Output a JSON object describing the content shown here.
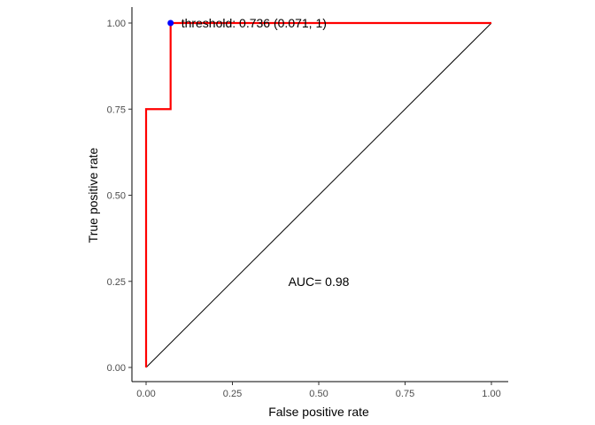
{
  "chart_data": {
    "type": "line",
    "xlabel": "False positive rate",
    "ylabel": "True positive rate",
    "xlim": [
      0,
      1
    ],
    "ylim": [
      0,
      1
    ],
    "x_ticks": [
      0,
      0.25,
      0.5,
      0.75,
      1
    ],
    "x_tick_labels": [
      "0.00",
      "0.25",
      "0.50",
      "0.75",
      "1.00"
    ],
    "y_ticks": [
      0,
      0.25,
      0.5,
      0.75,
      1
    ],
    "y_tick_labels": [
      "0.00",
      "0.25",
      "0.50",
      "0.75",
      "1.00"
    ],
    "grid": false,
    "series": [
      {
        "role": "roc-curve",
        "color": "#ff0000",
        "points": [
          [
            0,
            0
          ],
          [
            0,
            0.75
          ],
          [
            0.071,
            0.75
          ],
          [
            0.071,
            1
          ],
          [
            1,
            1
          ]
        ]
      },
      {
        "role": "reference-diagonal",
        "color": "#000000",
        "points": [
          [
            0,
            0
          ],
          [
            1,
            1
          ]
        ]
      }
    ],
    "highlight_point": {
      "x": 0.071,
      "y": 1,
      "color": "#0000ff"
    },
    "annotations": [
      {
        "text": "threshold: 0.736 (0.071, 1)",
        "x": 0.071,
        "y": 1
      },
      {
        "text": "AUC= 0.98",
        "x": 0.5,
        "y": 0.25
      }
    ]
  }
}
